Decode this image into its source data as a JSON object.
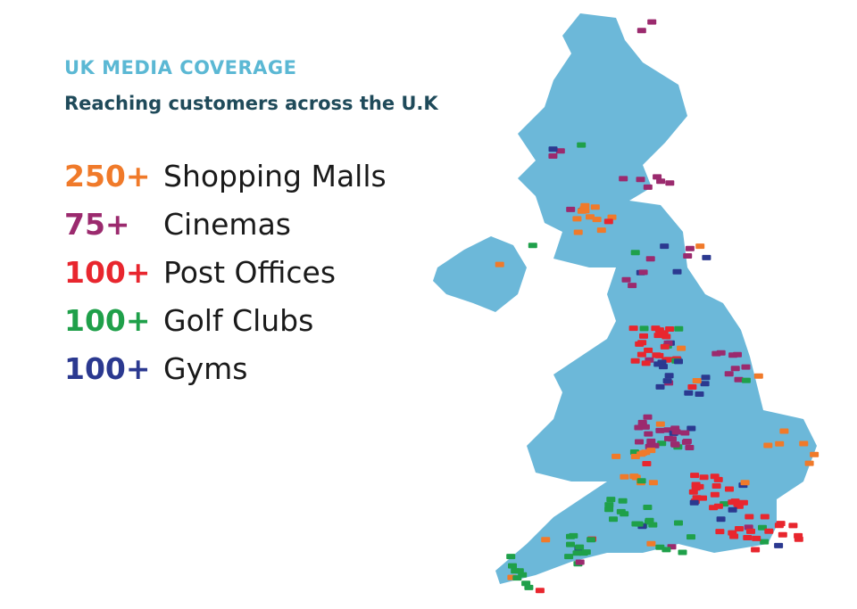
{
  "header": {
    "title": "UK MEDIA COVERAGE",
    "subtitle": "Reaching customers across the U.K"
  },
  "items": [
    {
      "count": "250+",
      "label": "Shopping Malls",
      "color": "#f07a2a"
    },
    {
      "count": "75+",
      "label": "Cinemas",
      "color": "#9b2a6e"
    },
    {
      "count": "100+",
      "label": "Post Offices",
      "color": "#e8262e"
    },
    {
      "count": "100+",
      "label": "Golf Clubs",
      "color": "#1fa04a"
    },
    {
      "count": "100+",
      "label": "Gyms",
      "color": "#2b3990"
    }
  ]
}
